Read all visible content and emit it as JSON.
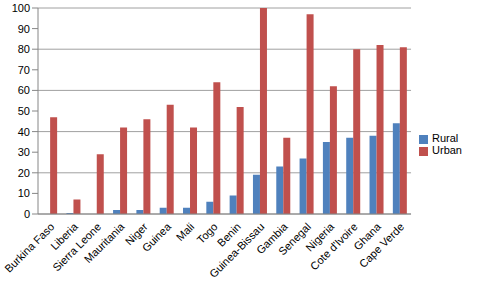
{
  "chart_data": {
    "type": "bar",
    "categories": [
      "Burkina Faso",
      "Liberia",
      "Sierra Leone",
      "Mauritania",
      "Niger",
      "Guinea",
      "Mali",
      "Togo",
      "Benin",
      "Guinea-Bissau",
      "Gambia",
      "Senegal",
      "Nigeria",
      "Cote d'Ivoire",
      "Ghana",
      "Cape Verde"
    ],
    "series": [
      {
        "name": "Rural",
        "color": "#4f81bd",
        "values": [
          0,
          0.5,
          0,
          2,
          2,
          3,
          3,
          6,
          9,
          19,
          23,
          27,
          35,
          37,
          38,
          44
        ]
      },
      {
        "name": "Urban",
        "color": "#c0504d",
        "values": [
          47,
          7,
          29,
          42,
          46,
          53,
          42,
          64,
          52,
          100,
          37,
          97,
          62,
          80,
          82,
          81
        ]
      }
    ],
    "ylim": [
      0,
      100
    ],
    "yticks": [
      0,
      10,
      20,
      30,
      40,
      50,
      60,
      70,
      80,
      90,
      100
    ],
    "grid": true,
    "legend": "right"
  }
}
